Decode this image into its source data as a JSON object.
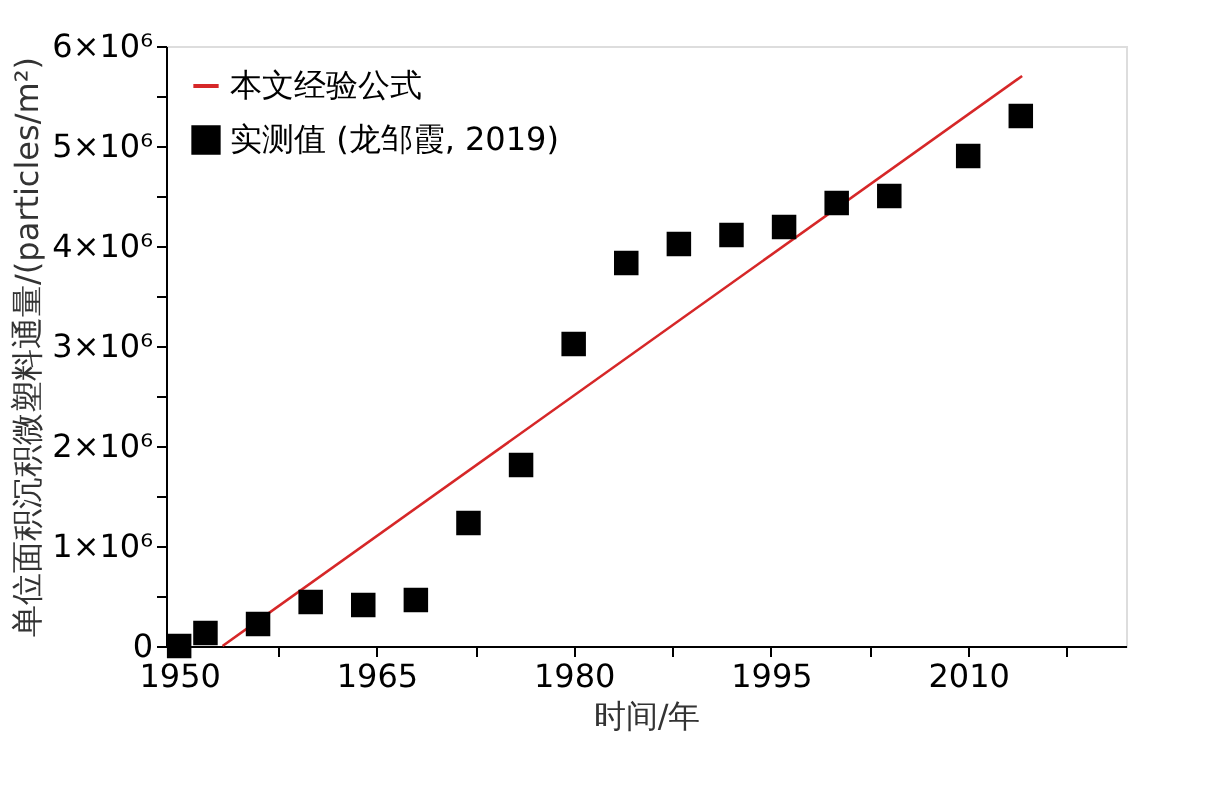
{
  "chart_data": {
    "type": "scatter",
    "xlabel": "时间/年",
    "ylabel": "单位面积沉积微塑料通量/(particles/m²)",
    "xlim": [
      1949,
      2022
    ],
    "ylim": [
      0,
      6000000
    ],
    "xticks": [
      1950,
      {
        "value": 1957.5,
        "label": null
      },
      1965,
      {
        "value": 1972.5,
        "label": null
      },
      1980,
      {
        "value": 1987.5,
        "label": null
      },
      1995,
      {
        "value": 2002.5,
        "label": null
      },
      2010,
      {
        "value": 2017.5,
        "label": null
      }
    ],
    "yticks": [
      0,
      {
        "value": 500000,
        "label": null
      },
      {
        "value": 1000000,
        "label": "1×10⁶"
      },
      {
        "value": 1500000,
        "label": null
      },
      {
        "value": 2000000,
        "label": "2×10⁶"
      },
      {
        "value": 2500000,
        "label": null
      },
      {
        "value": 3000000,
        "label": "3×10⁶"
      },
      {
        "value": 3500000,
        "label": null
      },
      {
        "value": 4000000,
        "label": "4×10⁶"
      },
      {
        "value": 4500000,
        "label": null
      },
      {
        "value": 5000000,
        "label": "5×10⁶"
      },
      {
        "value": 5500000,
        "label": null
      },
      {
        "value": 6000000,
        "label": "6×10⁶"
      }
    ],
    "legend": "top left",
    "grid": false,
    "series": [
      {
        "name": "本文经验公式",
        "type": "line",
        "color": "#d62728",
        "x": [
          1953.3,
          2014.1
        ],
        "values": [
          0,
          5700000
        ],
        "line_style": "solid",
        "marker": "none"
      },
      {
        "name": "实测值 (龙邹霞, 2019)",
        "type": "scatter",
        "color": "#000000",
        "marker": "square",
        "x": [
          1950,
          1952,
          1956,
          1960,
          1964,
          1968,
          1972,
          1976,
          1980,
          1984,
          1988,
          1992,
          1996,
          2000,
          2004,
          2010,
          2014
        ],
        "values": [
          0,
          130000,
          220000,
          440000,
          410000,
          460000,
          1230000,
          1810000,
          3020000,
          3830000,
          4020000,
          4110000,
          4190000,
          4430000,
          4500000,
          4900000,
          5300000
        ]
      }
    ]
  }
}
